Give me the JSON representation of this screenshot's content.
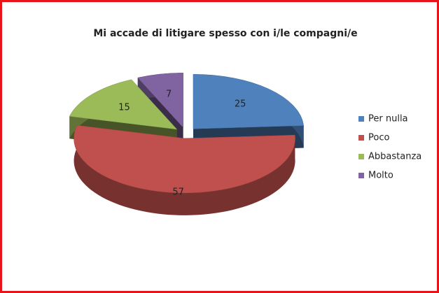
{
  "chart_data": {
    "type": "pie",
    "title": "Mi accade di litigare spesso con i/le compagni/e",
    "categories": [
      "Per nulla",
      "Poco",
      "Abbastanza",
      "Molto"
    ],
    "values": [
      25,
      57,
      15,
      7
    ],
    "colors": [
      "#4f81bd",
      "#c0504d",
      "#9bbb59",
      "#8064a2"
    ],
    "legend": "right"
  }
}
